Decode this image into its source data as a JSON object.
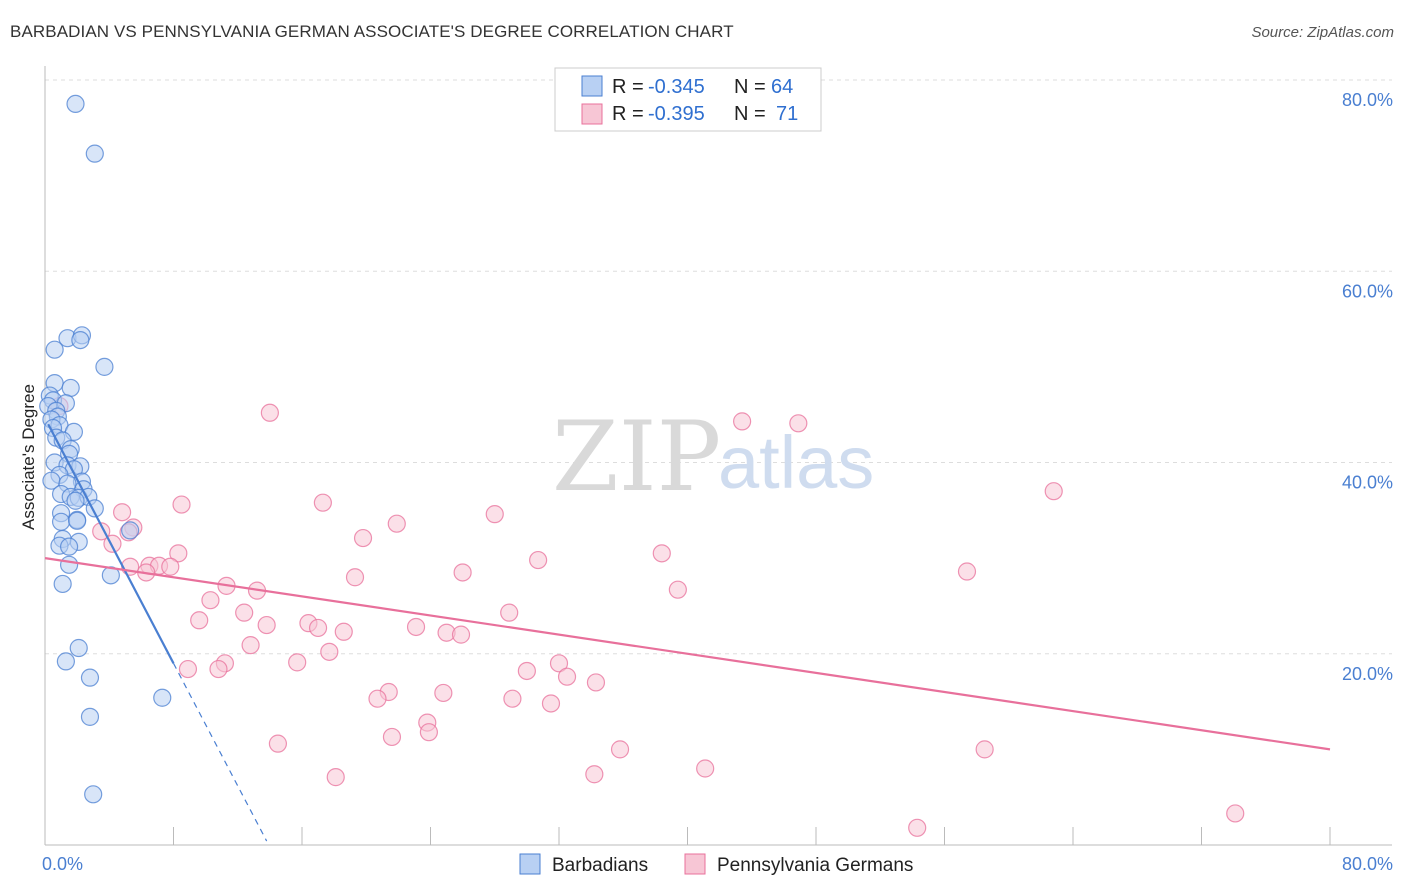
{
  "title": "BARBADIAN VS PENNSYLVANIA GERMAN ASSOCIATE'S DEGREE CORRELATION CHART",
  "source": "Source: ZipAtlas.com",
  "watermark": {
    "zip": "ZIP",
    "atlas": "atlas"
  },
  "colors": {
    "blue": "#4a7fd1",
    "pink": "#e8709b",
    "blue_fill": "#b8d0f3",
    "pink_fill": "#f7c6d5"
  },
  "legend": {
    "row1": {
      "r_label": "R = ",
      "r_value": "-0.345",
      "n_label": "N = ",
      "n_value": "64"
    },
    "row2": {
      "r_label": "R = ",
      "r_value": "-0.395",
      "n_label": "N = ",
      "n_value": "71"
    }
  },
  "bottom_legend": {
    "a": "Barbadians",
    "b": "Pennsylvania Germans"
  },
  "chart_data": {
    "type": "scatter",
    "title": "BARBADIAN VS PENNSYLVANIA GERMAN ASSOCIATE'S DEGREE CORRELATION CHART",
    "xlabel": "",
    "ylabel": "Associate's Degree",
    "xlim": [
      0,
      80
    ],
    "ylim": [
      0,
      80
    ],
    "x_tick_labels": {
      "left": "0.0%",
      "right": "80.0%"
    },
    "y_tick_values": [
      20,
      40,
      60,
      80
    ],
    "y_tick_labels": [
      "20.0%",
      "40.0%",
      "60.0%",
      "80.0%"
    ],
    "series": [
      {
        "name": "Barbadians",
        "r": -0.345,
        "n": 64,
        "trend": {
          "x0": 0.2,
          "y0": 44.0,
          "x1": 8.0,
          "y1": 19.0,
          "dash_to_x": 13.8
        },
        "points": [
          [
            1.9,
            77.5
          ],
          [
            3.1,
            72.3
          ],
          [
            1.4,
            53.0
          ],
          [
            2.3,
            53.3
          ],
          [
            2.2,
            52.8
          ],
          [
            0.6,
            51.8
          ],
          [
            3.7,
            50.0
          ],
          [
            0.6,
            48.3
          ],
          [
            1.6,
            47.8
          ],
          [
            0.3,
            47.0
          ],
          [
            0.5,
            46.5
          ],
          [
            1.3,
            46.2
          ],
          [
            0.2,
            45.9
          ],
          [
            0.7,
            45.4
          ],
          [
            0.8,
            44.8
          ],
          [
            0.4,
            44.5
          ],
          [
            0.9,
            43.9
          ],
          [
            0.5,
            43.6
          ],
          [
            1.8,
            43.2
          ],
          [
            0.7,
            42.6
          ],
          [
            1.1,
            42.3
          ],
          [
            1.6,
            41.4
          ],
          [
            1.5,
            40.9
          ],
          [
            0.6,
            40.0
          ],
          [
            1.4,
            39.7
          ],
          [
            2.2,
            39.6
          ],
          [
            1.8,
            39.3
          ],
          [
            0.9,
            38.7
          ],
          [
            0.4,
            38.1
          ],
          [
            2.3,
            38.0
          ],
          [
            1.4,
            37.8
          ],
          [
            2.4,
            37.2
          ],
          [
            1.0,
            36.7
          ],
          [
            1.6,
            36.4
          ],
          [
            2.1,
            36.3
          ],
          [
            2.7,
            36.4
          ],
          [
            1.9,
            36.0
          ],
          [
            3.1,
            35.2
          ],
          [
            1.0,
            34.7
          ],
          [
            2.0,
            34.0
          ],
          [
            1.0,
            33.8
          ],
          [
            2.0,
            33.9
          ],
          [
            5.3,
            32.9
          ],
          [
            1.1,
            32.0
          ],
          [
            2.1,
            31.7
          ],
          [
            0.9,
            31.3
          ],
          [
            1.5,
            31.2
          ],
          [
            1.5,
            29.3
          ],
          [
            4.1,
            28.2
          ],
          [
            1.1,
            27.3
          ],
          [
            2.1,
            20.6
          ],
          [
            1.3,
            19.2
          ],
          [
            2.8,
            17.5
          ],
          [
            7.3,
            15.4
          ],
          [
            2.8,
            13.4
          ],
          [
            3.0,
            5.3
          ]
        ]
      },
      {
        "name": "Pennsylvania Germans",
        "r": -0.395,
        "n": 71,
        "trend": {
          "x0": 0.0,
          "y0": 30.0,
          "x1": 80.0,
          "y1": 10.0
        },
        "points": [
          [
            0.9,
            45.9
          ],
          [
            14.0,
            45.2
          ],
          [
            43.4,
            44.3
          ],
          [
            46.9,
            44.1
          ],
          [
            17.3,
            35.8
          ],
          [
            62.8,
            37.0
          ],
          [
            8.5,
            35.6
          ],
          [
            28.0,
            34.6
          ],
          [
            4.8,
            34.8
          ],
          [
            21.9,
            33.6
          ],
          [
            5.5,
            33.2
          ],
          [
            3.5,
            32.8
          ],
          [
            5.2,
            32.7
          ],
          [
            19.8,
            32.1
          ],
          [
            4.2,
            31.5
          ],
          [
            8.3,
            30.5
          ],
          [
            38.4,
            30.5
          ],
          [
            30.7,
            29.8
          ],
          [
            6.5,
            29.2
          ],
          [
            7.1,
            29.2
          ],
          [
            7.8,
            29.1
          ],
          [
            5.3,
            29.1
          ],
          [
            6.3,
            28.5
          ],
          [
            26.0,
            28.5
          ],
          [
            19.3,
            28.0
          ],
          [
            57.4,
            28.6
          ],
          [
            11.3,
            27.1
          ],
          [
            13.2,
            26.6
          ],
          [
            39.4,
            26.7
          ],
          [
            10.3,
            25.6
          ],
          [
            28.9,
            24.3
          ],
          [
            12.4,
            24.3
          ],
          [
            9.6,
            23.5
          ],
          [
            16.4,
            23.2
          ],
          [
            17.0,
            22.7
          ],
          [
            13.8,
            23.0
          ],
          [
            23.1,
            22.8
          ],
          [
            18.6,
            22.3
          ],
          [
            25.0,
            22.2
          ],
          [
            25.9,
            22.0
          ],
          [
            12.8,
            20.9
          ],
          [
            17.7,
            20.2
          ],
          [
            15.7,
            19.1
          ],
          [
            11.2,
            19.0
          ],
          [
            32.0,
            19.0
          ],
          [
            30.0,
            18.2
          ],
          [
            8.9,
            18.4
          ],
          [
            10.8,
            18.4
          ],
          [
            32.5,
            17.6
          ],
          [
            34.3,
            17.0
          ],
          [
            21.4,
            16.0
          ],
          [
            24.8,
            15.9
          ],
          [
            20.7,
            15.3
          ],
          [
            29.1,
            15.3
          ],
          [
            31.5,
            14.8
          ],
          [
            23.8,
            12.8
          ],
          [
            23.9,
            11.8
          ],
          [
            21.6,
            11.3
          ],
          [
            14.5,
            10.6
          ],
          [
            35.8,
            10.0
          ],
          [
            58.5,
            10.0
          ],
          [
            41.1,
            8.0
          ],
          [
            18.1,
            7.1
          ],
          [
            34.2,
            7.4
          ],
          [
            54.3,
            1.8
          ],
          [
            74.1,
            3.3
          ]
        ]
      }
    ]
  }
}
